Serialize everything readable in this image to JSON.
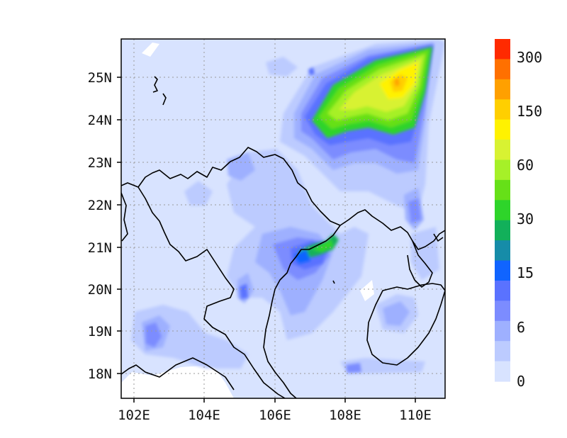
{
  "map": {
    "x_axis_labels": [
      "102E",
      "104E",
      "106E",
      "108E",
      "110E"
    ],
    "y_axis_labels": [
      "25N",
      "24N",
      "23N",
      "22N",
      "21N",
      "20N",
      "19N",
      "18N"
    ],
    "extent": {
      "lon_min": 101.7,
      "lon_max": 110.85,
      "lat_min": 17.4,
      "lat_max": 25.9
    },
    "gridlines": true
  },
  "colorbar": {
    "tick_labels": [
      "300",
      "150",
      "60",
      "30",
      "15",
      "6",
      "0"
    ],
    "colors": [
      "#ff2a00",
      "#ff7000",
      "#ffa000",
      "#ffcf00",
      "#fff200",
      "#d8f232",
      "#a6f028",
      "#66e018",
      "#2ed42a",
      "#12b05a",
      "#168ca8",
      "#1064ff",
      "#5a72ff",
      "#7c8cff",
      "#9eb0ff",
      "#bccbff",
      "#d8e3ff"
    ]
  },
  "colors": {
    "background_field": "#d8e3ff",
    "coastline": "#000000",
    "grid": "#9a9a9a"
  }
}
